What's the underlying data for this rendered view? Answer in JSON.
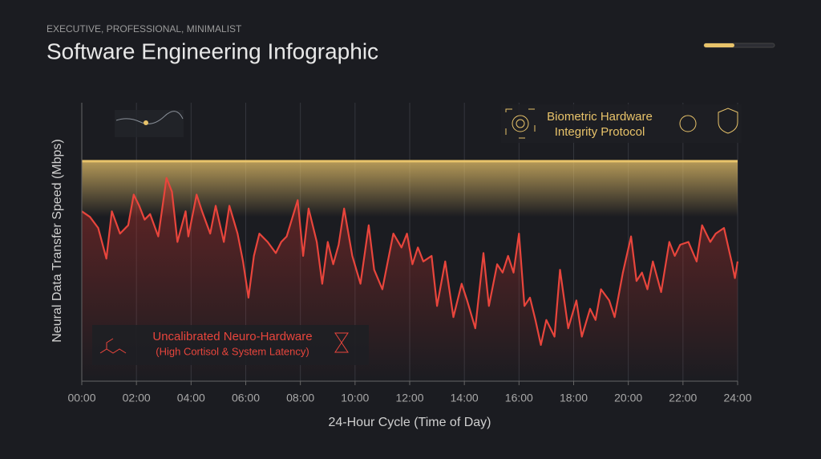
{
  "chart_data": {
    "type": "line",
    "subtitle": "EXECUTIVE, PROFESSIONAL, MINIMALIST",
    "title": "Software Engineering Infographic",
    "y_label": "Neural Data Transfer Speed (Mbps)",
    "x_label": "24-Hour Cycle (Time of Day)",
    "annotations": {
      "top": [
        "Biometric Hardware",
        "Integrity Protocol"
      ],
      "bottom": [
        "Uncalibrated Neuro-Hardware",
        "(High Cortisol & System Latency)"
      ]
    },
    "x": [
      0,
      0.3,
      0.6,
      0.9,
      1.1,
      1.4,
      1.7,
      1.9,
      2.1,
      2.3,
      2.5,
      2.8,
      3.1,
      3.3,
      3.5,
      3.8,
      3.9,
      4.2,
      4.4,
      4.7,
      4.9,
      5.2,
      5.4,
      5.7,
      5.9,
      6.1,
      6.3,
      6.5,
      6.8,
      7.1,
      7.3,
      7.5,
      7.9,
      8.1,
      8.3,
      8.6,
      8.8,
      9.0,
      9.2,
      9.4,
      9.6,
      9.9,
      10.2,
      10.5,
      10.7,
      11.0,
      11.2,
      11.4,
      11.7,
      11.9,
      12.1,
      12.3,
      12.5,
      12.8,
      13.0,
      13.3,
      13.6,
      13.9,
      14.1,
      14.4,
      14.7,
      14.9,
      15.2,
      15.4,
      15.6,
      15.8,
      16.0,
      16.2,
      16.4,
      16.6,
      16.8,
      17.0,
      17.3,
      17.5,
      17.8,
      18.1,
      18.3,
      18.6,
      18.8,
      19.0,
      19.3,
      19.5,
      19.8,
      20.1,
      20.3,
      20.5,
      20.7,
      20.9,
      21.2,
      21.5,
      21.7,
      21.9,
      22.2,
      22.5,
      22.7,
      23.0,
      23.2,
      23.5,
      23.8,
      23.9,
      24.0
    ],
    "series": [
      {
        "color": "#e8453c",
        "values": [
          61,
          59,
          55,
          44,
          61,
          53,
          56,
          67,
          63,
          58,
          60,
          52,
          73,
          68,
          50,
          61,
          52,
          67,
          61,
          53,
          63,
          50,
          63,
          53,
          43,
          30,
          45,
          53,
          50,
          46,
          50,
          52,
          65,
          45,
          62,
          50,
          35,
          50,
          42,
          49,
          62,
          45,
          35,
          56,
          40,
          33,
          43,
          53,
          48,
          53,
          42,
          48,
          43,
          45,
          27,
          43,
          23,
          35,
          29,
          19,
          46,
          27,
          42,
          39,
          45,
          39,
          53,
          27,
          30,
          22,
          13,
          22,
          16,
          40,
          19,
          29,
          16,
          26,
          22,
          33,
          29,
          23,
          39,
          52,
          36,
          39,
          33,
          43,
          32,
          50,
          45,
          49,
          50,
          43,
          56,
          50,
          53,
          55,
          42,
          37,
          43
        ]
      }
    ],
    "band": {
      "ylim": [
        59,
        79
      ],
      "color": "#e8c36a"
    },
    "xlim": [
      0,
      24
    ],
    "ylim": [
      0,
      100
    ],
    "xticks": [
      {
        "value": 0,
        "label": "00:00"
      },
      {
        "value": 2,
        "label": "02:00"
      },
      {
        "value": 4,
        "label": "04:00"
      },
      {
        "value": 6,
        "label": "06:00"
      },
      {
        "value": 8,
        "label": "08:00"
      },
      {
        "value": 10,
        "label": "10:00"
      },
      {
        "value": 12,
        "label": "12:00"
      },
      {
        "value": 14,
        "label": "14:00"
      },
      {
        "value": 16,
        "label": "16:00"
      },
      {
        "value": 18,
        "label": "18:00"
      },
      {
        "value": 20,
        "label": "20:00"
      },
      {
        "value": 22,
        "label": "22:00"
      },
      {
        "value": 24,
        "label": "24:00"
      }
    ],
    "grid": true
  }
}
